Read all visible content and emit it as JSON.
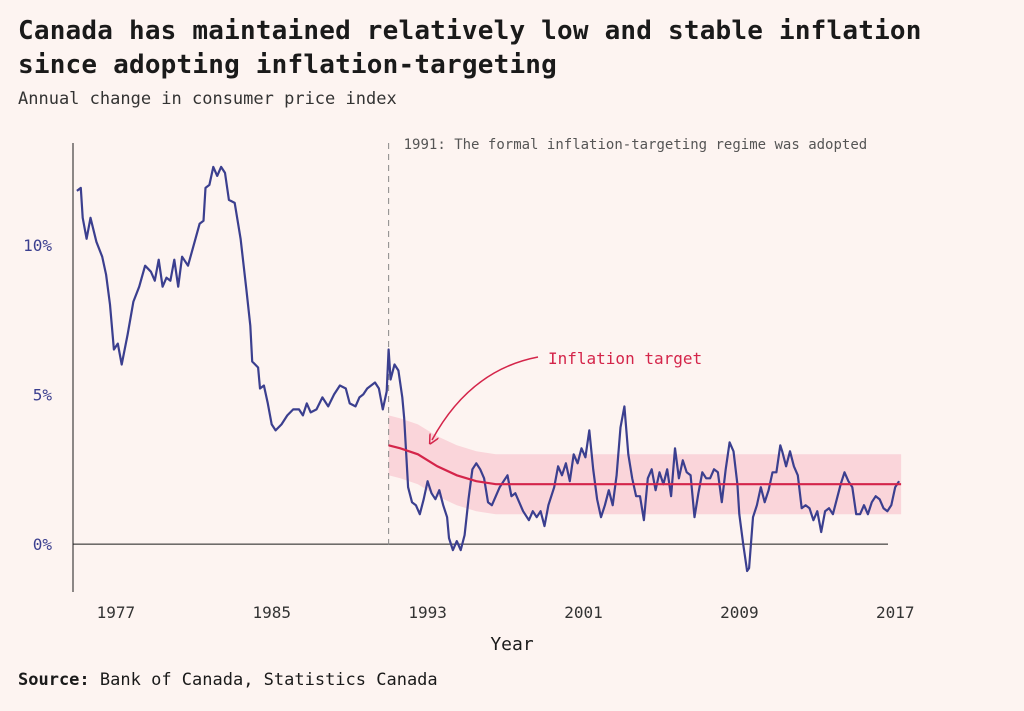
{
  "chart_data": {
    "type": "line",
    "title": "Canada has maintained relatively low and stable inflation since adopting inflation-targeting",
    "subtitle": "Annual change in consumer price index",
    "xlabel": "Year",
    "ylabel": "",
    "xlim": [
      1974.8,
      2017.4
    ],
    "ylim": [
      -1.6,
      13.4
    ],
    "x_ticks": [
      1977,
      1985,
      1993,
      2001,
      2009,
      2017
    ],
    "y_ticks": [
      {
        "value": 0,
        "label": "0%"
      },
      {
        "value": 5,
        "label": "5%"
      },
      {
        "value": 10,
        "label": "10%"
      }
    ],
    "annotations": {
      "regime_year": 1991,
      "regime_text": "1991: The formal inflation-targeting regime was adopted",
      "target_label": "Inflation target"
    },
    "series": [
      {
        "color": "#3b3f8f",
        "points": [
          [
            1975.0,
            11.8
          ],
          [
            1975.2,
            11.9
          ],
          [
            1975.3,
            10.9
          ],
          [
            1975.5,
            10.2
          ],
          [
            1975.7,
            10.9
          ],
          [
            1976.0,
            10.1
          ],
          [
            1976.3,
            9.6
          ],
          [
            1976.5,
            9.0
          ],
          [
            1976.7,
            8.0
          ],
          [
            1976.9,
            6.5
          ],
          [
            1977.1,
            6.7
          ],
          [
            1977.3,
            6.0
          ],
          [
            1977.6,
            7.0
          ],
          [
            1977.9,
            8.1
          ],
          [
            1978.2,
            8.6
          ],
          [
            1978.5,
            9.3
          ],
          [
            1978.8,
            9.1
          ],
          [
            1979.0,
            8.8
          ],
          [
            1979.2,
            9.5
          ],
          [
            1979.4,
            8.6
          ],
          [
            1979.6,
            8.9
          ],
          [
            1979.8,
            8.8
          ],
          [
            1980.0,
            9.5
          ],
          [
            1980.2,
            8.6
          ],
          [
            1980.4,
            9.6
          ],
          [
            1980.7,
            9.3
          ],
          [
            1981.0,
            10.0
          ],
          [
            1981.3,
            10.7
          ],
          [
            1981.5,
            10.8
          ],
          [
            1981.6,
            11.9
          ],
          [
            1981.8,
            12.0
          ],
          [
            1982.0,
            12.6
          ],
          [
            1982.2,
            12.3
          ],
          [
            1982.4,
            12.6
          ],
          [
            1982.6,
            12.4
          ],
          [
            1982.8,
            11.5
          ],
          [
            1983.1,
            11.4
          ],
          [
            1983.4,
            10.2
          ],
          [
            1983.7,
            8.5
          ],
          [
            1983.9,
            7.3
          ],
          [
            1984.0,
            6.1
          ],
          [
            1984.3,
            5.9
          ],
          [
            1984.4,
            5.2
          ],
          [
            1984.6,
            5.3
          ],
          [
            1984.8,
            4.7
          ],
          [
            1985.0,
            4.0
          ],
          [
            1985.2,
            3.8
          ],
          [
            1985.5,
            4.0
          ],
          [
            1985.8,
            4.3
          ],
          [
            1986.1,
            4.5
          ],
          [
            1986.4,
            4.5
          ],
          [
            1986.6,
            4.3
          ],
          [
            1986.8,
            4.7
          ],
          [
            1987.0,
            4.4
          ],
          [
            1987.3,
            4.5
          ],
          [
            1987.6,
            4.9
          ],
          [
            1987.9,
            4.6
          ],
          [
            1988.2,
            5.0
          ],
          [
            1988.5,
            5.3
          ],
          [
            1988.8,
            5.2
          ],
          [
            1989.0,
            4.7
          ],
          [
            1989.3,
            4.6
          ],
          [
            1989.5,
            4.9
          ],
          [
            1989.7,
            5.0
          ],
          [
            1989.9,
            5.2
          ],
          [
            1990.1,
            5.3
          ],
          [
            1990.3,
            5.4
          ],
          [
            1990.5,
            5.2
          ],
          [
            1990.7,
            4.5
          ],
          [
            1990.9,
            5.1
          ],
          [
            1991.0,
            6.5
          ],
          [
            1991.1,
            5.5
          ],
          [
            1991.3,
            6.0
          ],
          [
            1991.5,
            5.8
          ],
          [
            1991.7,
            4.9
          ],
          [
            1991.8,
            4.2
          ],
          [
            1992.0,
            1.9
          ],
          [
            1992.2,
            1.4
          ],
          [
            1992.4,
            1.3
          ],
          [
            1992.6,
            1.0
          ],
          [
            1992.8,
            1.5
          ],
          [
            1993.0,
            2.1
          ],
          [
            1993.2,
            1.7
          ],
          [
            1993.4,
            1.5
          ],
          [
            1993.6,
            1.8
          ],
          [
            1993.8,
            1.3
          ],
          [
            1994.0,
            0.9
          ],
          [
            1994.1,
            0.2
          ],
          [
            1994.3,
            -0.2
          ],
          [
            1994.5,
            0.1
          ],
          [
            1994.7,
            -0.2
          ],
          [
            1994.9,
            0.3
          ],
          [
            1995.1,
            1.5
          ],
          [
            1995.3,
            2.5
          ],
          [
            1995.5,
            2.7
          ],
          [
            1995.7,
            2.5
          ],
          [
            1995.9,
            2.2
          ],
          [
            1996.1,
            1.4
          ],
          [
            1996.3,
            1.3
          ],
          [
            1996.5,
            1.6
          ],
          [
            1996.7,
            1.9
          ],
          [
            1996.9,
            2.1
          ],
          [
            1997.1,
            2.3
          ],
          [
            1997.3,
            1.6
          ],
          [
            1997.5,
            1.7
          ],
          [
            1997.7,
            1.4
          ],
          [
            1997.9,
            1.1
          ],
          [
            1998.2,
            0.8
          ],
          [
            1998.4,
            1.1
          ],
          [
            1998.6,
            0.9
          ],
          [
            1998.8,
            1.1
          ],
          [
            1999.0,
            0.6
          ],
          [
            1999.2,
            1.3
          ],
          [
            1999.5,
            1.9
          ],
          [
            1999.7,
            2.6
          ],
          [
            1999.9,
            2.3
          ],
          [
            2000.1,
            2.7
          ],
          [
            2000.3,
            2.1
          ],
          [
            2000.5,
            3.0
          ],
          [
            2000.7,
            2.7
          ],
          [
            2000.9,
            3.2
          ],
          [
            2001.1,
            2.9
          ],
          [
            2001.3,
            3.8
          ],
          [
            2001.5,
            2.5
          ],
          [
            2001.7,
            1.5
          ],
          [
            2001.9,
            0.9
          ],
          [
            2002.1,
            1.3
          ],
          [
            2002.3,
            1.8
          ],
          [
            2002.5,
            1.3
          ],
          [
            2002.7,
            2.3
          ],
          [
            2002.9,
            3.9
          ],
          [
            2003.1,
            4.6
          ],
          [
            2003.3,
            3.0
          ],
          [
            2003.5,
            2.2
          ],
          [
            2003.7,
            1.6
          ],
          [
            2003.9,
            1.6
          ],
          [
            2004.1,
            0.8
          ],
          [
            2004.3,
            2.2
          ],
          [
            2004.5,
            2.5
          ],
          [
            2004.7,
            1.8
          ],
          [
            2004.9,
            2.4
          ],
          [
            2005.1,
            2.0
          ],
          [
            2005.3,
            2.5
          ],
          [
            2005.5,
            1.6
          ],
          [
            2005.7,
            3.2
          ],
          [
            2005.9,
            2.2
          ],
          [
            2006.1,
            2.8
          ],
          [
            2006.3,
            2.4
          ],
          [
            2006.5,
            2.3
          ],
          [
            2006.7,
            0.9
          ],
          [
            2006.9,
            1.7
          ],
          [
            2007.1,
            2.4
          ],
          [
            2007.3,
            2.2
          ],
          [
            2007.5,
            2.2
          ],
          [
            2007.7,
            2.5
          ],
          [
            2007.9,
            2.4
          ],
          [
            2008.1,
            1.4
          ],
          [
            2008.3,
            2.5
          ],
          [
            2008.5,
            3.4
          ],
          [
            2008.7,
            3.1
          ],
          [
            2008.9,
            2.0
          ],
          [
            2009.0,
            1.0
          ],
          [
            2009.2,
            0.0
          ],
          [
            2009.4,
            -0.9
          ],
          [
            2009.5,
            -0.8
          ],
          [
            2009.7,
            0.9
          ],
          [
            2009.9,
            1.3
          ],
          [
            2010.1,
            1.9
          ],
          [
            2010.3,
            1.4
          ],
          [
            2010.5,
            1.8
          ],
          [
            2010.7,
            2.4
          ],
          [
            2010.9,
            2.4
          ],
          [
            2011.1,
            3.3
          ],
          [
            2011.2,
            3.1
          ],
          [
            2011.4,
            2.6
          ],
          [
            2011.6,
            3.1
          ],
          [
            2011.8,
            2.6
          ],
          [
            2012.0,
            2.3
          ],
          [
            2012.2,
            1.2
          ],
          [
            2012.4,
            1.3
          ],
          [
            2012.6,
            1.2
          ],
          [
            2012.8,
            0.8
          ],
          [
            2013.0,
            1.1
          ],
          [
            2013.2,
            0.4
          ],
          [
            2013.4,
            1.1
          ],
          [
            2013.6,
            1.2
          ],
          [
            2013.8,
            1.0
          ],
          [
            2014.0,
            1.5
          ],
          [
            2014.2,
            2.0
          ],
          [
            2014.4,
            2.4
          ],
          [
            2014.6,
            2.1
          ],
          [
            2014.8,
            1.9
          ],
          [
            2015.0,
            1.0
          ],
          [
            2015.2,
            1.0
          ],
          [
            2015.4,
            1.3
          ],
          [
            2015.6,
            1.0
          ],
          [
            2015.8,
            1.4
          ],
          [
            2016.0,
            1.6
          ],
          [
            2016.2,
            1.5
          ],
          [
            2016.4,
            1.2
          ],
          [
            2016.6,
            1.1
          ],
          [
            2016.8,
            1.3
          ],
          [
            2017.0,
            1.9
          ],
          [
            2017.2,
            2.1
          ]
        ]
      },
      {
        "color": "#d4254a",
        "points": [
          [
            1991.0,
            3.3
          ],
          [
            1991.6,
            3.2
          ],
          [
            1992.5,
            3.0
          ],
          [
            1993.5,
            2.6
          ],
          [
            1994.5,
            2.3
          ],
          [
            1995.5,
            2.1
          ],
          [
            1996.5,
            2.0
          ],
          [
            2017.3,
            2.0
          ]
        ],
        "band_width": 1
      }
    ]
  },
  "source": {
    "label": "Source:",
    "text": "Bank of Canada, Statistics Canada"
  }
}
